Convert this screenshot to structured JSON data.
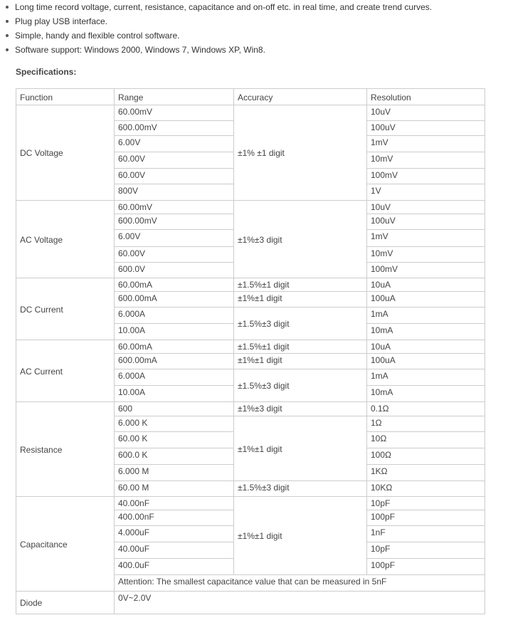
{
  "bullets": [
    "Long time record voltage, current, resistance, capacitance and on-off etc. in real time, and create trend curves.",
    "Plug play USB interface.",
    "Simple, handy and flexible control software.",
    "Software support: Windows 2000, Windows 7, Windows XP, Win8."
  ],
  "spec_title": "Specifications:",
  "headers": [
    "Function",
    "Range",
    "Accuracy",
    "Resolution"
  ],
  "groups": [
    {
      "function": "DC Voltage",
      "ranges": [
        "60.00mV",
        "600.00mV",
        "6.00V",
        "60.00V",
        "60.00V",
        "800V"
      ],
      "resolutions": [
        "10uV",
        "100uV",
        "1mV",
        "10mV",
        "100mV",
        "1V"
      ],
      "accuracy": [
        {
          "text": "±1% ±1 digit",
          "span": 6
        }
      ]
    },
    {
      "function": "AC Voltage",
      "ranges": [
        "60.00mV",
        "600.00mV",
        "6.00V",
        "60.00V",
        "600.0V"
      ],
      "resolutions": [
        "10uV",
        "100uV",
        "1mV",
        "10mV",
        "100mV"
      ],
      "accuracy": [
        {
          "text": "±1%±3 digit",
          "span": 5
        }
      ]
    },
    {
      "function": "DC Current",
      "ranges": [
        "60.00mA",
        "600.00mA",
        "6.000A",
        "10.00A"
      ],
      "resolutions": [
        "10uA",
        "100uA",
        "1mA",
        "10mA"
      ],
      "accuracy": [
        {
          "text": "±1.5%±1 digit",
          "span": 1
        },
        {
          "text": "±1%±1 digit",
          "span": 1
        },
        {
          "text": "±1.5%±3 digit",
          "span": 2
        }
      ]
    },
    {
      "function": "AC Current",
      "ranges": [
        "60.00mA",
        "600.00mA",
        "6.000A",
        "10.00A"
      ],
      "resolutions": [
        "10uA",
        "100uA",
        "1mA",
        "10mA"
      ],
      "accuracy": [
        {
          "text": "±1.5%±1 digit",
          "span": 1
        },
        {
          "text": "±1%±1 digit",
          "span": 1
        },
        {
          "text": "±1.5%±3 digit",
          "span": 2
        }
      ]
    },
    {
      "function": "Resistance",
      "ranges": [
        "600",
        "6.000 K",
        "60.00 K",
        "600.0 K",
        "6.000 M",
        "60.00 M"
      ],
      "resolutions": [
        "0.1Ω",
        "1Ω",
        "10Ω",
        "100Ω",
        "1KΩ",
        "10KΩ"
      ],
      "accuracy": [
        {
          "text": "±1%±3 digit",
          "span": 1
        },
        {
          "text": "±1%±1 digit",
          "span": 4
        },
        {
          "text": "±1.5%±3 digit",
          "span": 1
        }
      ]
    },
    {
      "function": "Capacitance",
      "ranges": [
        "40.00nF",
        "400.00nF",
        "4.000uF",
        "40.00uF",
        "400.0uF"
      ],
      "resolutions": [
        "10pF",
        "100pF",
        "1nF",
        "10pF",
        "100pF"
      ],
      "accuracy": [
        {
          "text": "±1%±1 digit",
          "span": 5
        }
      ],
      "note": "Attention: The smallest capacitance value that can be measured in 5nF"
    },
    {
      "function": "Diode",
      "single": "0V~2.0V"
    }
  ]
}
